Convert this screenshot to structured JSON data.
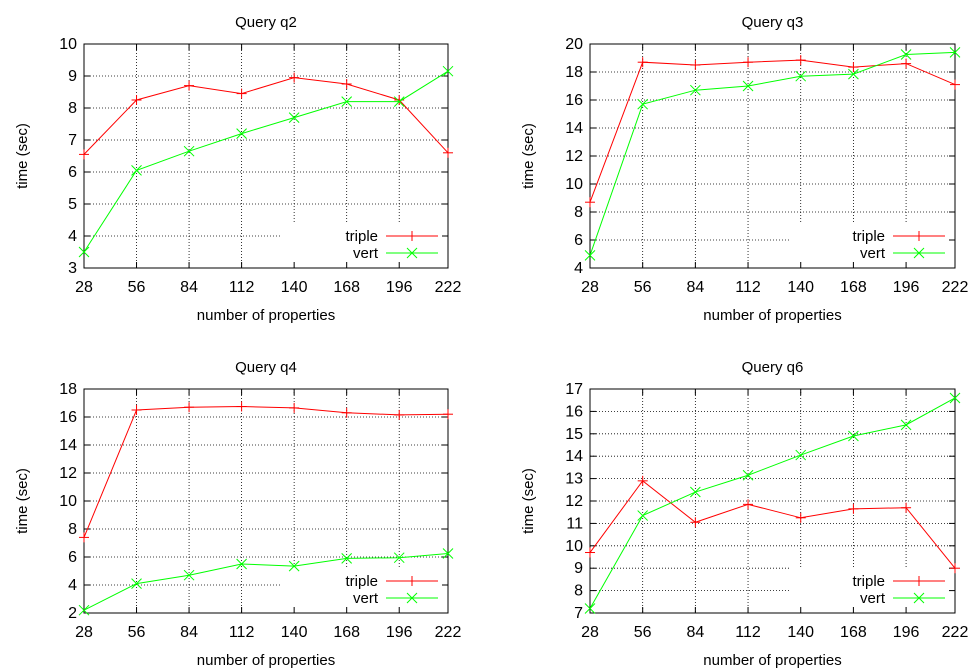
{
  "chart_data": [
    {
      "type": "line",
      "title": "Query q2",
      "xlabel": "number of properties",
      "ylabel": "time (sec)",
      "x": [
        28,
        56,
        84,
        112,
        140,
        168,
        196,
        222
      ],
      "xticks": [
        "28",
        "56",
        "84",
        "112",
        "140",
        "168",
        "196",
        "222"
      ],
      "ylim": [
        3,
        10
      ],
      "yticks": [
        "3",
        "4",
        "5",
        "6",
        "7",
        "8",
        "9",
        "10"
      ],
      "grid": true,
      "legend_position": "bottom-right",
      "series": [
        {
          "name": "triple",
          "color": "#ff0000",
          "marker": "plus",
          "values": [
            6.55,
            8.25,
            8.7,
            8.45,
            8.95,
            8.75,
            8.25,
            6.6
          ]
        },
        {
          "name": "vert",
          "color": "#00ff00",
          "marker": "cross",
          "values": [
            3.5,
            6.05,
            6.65,
            7.2,
            7.7,
            8.2,
            8.2,
            9.15
          ]
        }
      ]
    },
    {
      "type": "line",
      "title": "Query q3",
      "xlabel": "number of properties",
      "ylabel": "time (sec)",
      "x": [
        28,
        56,
        84,
        112,
        140,
        168,
        196,
        222
      ],
      "xticks": [
        "28",
        "56",
        "84",
        "112",
        "140",
        "168",
        "196",
        "222"
      ],
      "ylim": [
        4,
        20
      ],
      "yticks": [
        "4",
        "6",
        "8",
        "10",
        "12",
        "14",
        "16",
        "18",
        "20"
      ],
      "grid": true,
      "legend_position": "bottom-right",
      "series": [
        {
          "name": "triple",
          "color": "#ff0000",
          "marker": "plus",
          "values": [
            8.7,
            18.7,
            18.5,
            18.7,
            18.85,
            18.35,
            18.6,
            17.1
          ]
        },
        {
          "name": "vert",
          "color": "#00ff00",
          "marker": "cross",
          "values": [
            4.9,
            15.7,
            16.7,
            17.0,
            17.7,
            17.85,
            19.25,
            19.4
          ]
        }
      ]
    },
    {
      "type": "line",
      "title": "Query q4",
      "xlabel": "number of properties",
      "ylabel": "time (sec)",
      "x": [
        28,
        56,
        84,
        112,
        140,
        168,
        196,
        222
      ],
      "xticks": [
        "28",
        "56",
        "84",
        "112",
        "140",
        "168",
        "196",
        "222"
      ],
      "ylim": [
        2,
        18
      ],
      "yticks": [
        "2",
        "4",
        "6",
        "8",
        "10",
        "12",
        "14",
        "16",
        "18"
      ],
      "grid": true,
      "legend_position": "bottom-right",
      "series": [
        {
          "name": "triple",
          "color": "#ff0000",
          "marker": "plus",
          "values": [
            7.4,
            16.5,
            16.7,
            16.75,
            16.65,
            16.3,
            16.15,
            16.2
          ]
        },
        {
          "name": "vert",
          "color": "#00ff00",
          "marker": "cross",
          "values": [
            2.2,
            4.1,
            4.7,
            5.5,
            5.35,
            5.9,
            5.95,
            6.25
          ]
        }
      ]
    },
    {
      "type": "line",
      "title": "Query q6",
      "xlabel": "number of properties",
      "ylabel": "time (sec)",
      "x": [
        28,
        56,
        84,
        112,
        140,
        168,
        196,
        222
      ],
      "xticks": [
        "28",
        "56",
        "84",
        "112",
        "140",
        "168",
        "196",
        "222"
      ],
      "ylim": [
        7,
        17
      ],
      "yticks": [
        "7",
        "8",
        "9",
        "10",
        "11",
        "12",
        "13",
        "14",
        "15",
        "16",
        "17"
      ],
      "grid": true,
      "legend_position": "bottom-right",
      "series": [
        {
          "name": "triple",
          "color": "#ff0000",
          "marker": "plus",
          "values": [
            9.7,
            12.9,
            11.05,
            11.85,
            11.25,
            11.65,
            11.7,
            9.0
          ]
        },
        {
          "name": "vert",
          "color": "#00ff00",
          "marker": "cross",
          "values": [
            7.2,
            11.35,
            12.4,
            13.15,
            14.05,
            14.9,
            15.4,
            16.6
          ]
        }
      ]
    }
  ]
}
